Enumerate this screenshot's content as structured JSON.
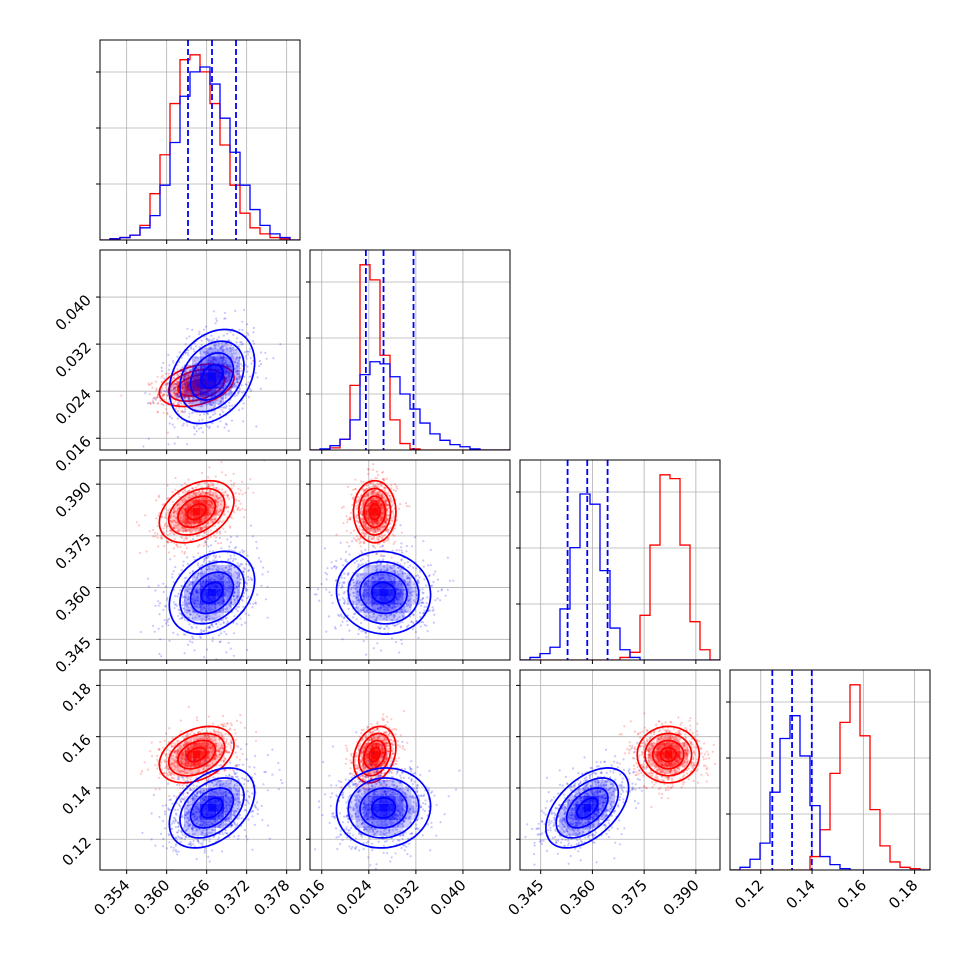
{
  "chart_data": {
    "type": "corner",
    "colors": {
      "red": "#ff0000",
      "blue": "#0000ff",
      "quantile_line": "#0000ff",
      "grid": "#b0b0b0"
    },
    "grid": true,
    "quantile_lines": "dashed",
    "parameters": [
      {
        "range": [
          0.35,
          0.38
        ],
        "ticks": [
          "0.354",
          "0.360",
          "0.366",
          "0.372",
          "0.378"
        ]
      },
      {
        "range": [
          0.014,
          0.048
        ],
        "ticks": [
          "0.016",
          "0.024",
          "0.032",
          "0.040"
        ]
      },
      {
        "range": [
          0.339,
          0.397
        ],
        "ticks": [
          "0.345",
          "0.360",
          "0.375",
          "0.390"
        ]
      },
      {
        "range": [
          0.108,
          0.186
        ],
        "ticks": [
          "0.12",
          "0.14",
          "0.16",
          "0.18"
        ]
      }
    ],
    "series": [
      {
        "color": "red",
        "mean": [
          0.3645,
          0.025,
          0.382,
          0.153
        ],
        "std": [
          0.0028,
          0.0018,
          0.0045,
          0.0055
        ],
        "corr": {
          "0-1": 0.35,
          "0-2": 0.35,
          "0-3": 0.35,
          "1-2": 0.0,
          "1-3": 0.25,
          "2-3": 0.0
        }
      },
      {
        "color": "blue",
        "mean": [
          0.3668,
          0.0265,
          0.3585,
          0.1322
        ],
        "std": [
          0.0032,
          0.004,
          0.006,
          0.0078
        ],
        "corr": {
          "0-1": 0.3,
          "0-2": 0.3,
          "0-3": 0.4,
          "1-2": -0.05,
          "1-3": 0.05,
          "2-3": 0.5
        }
      }
    ],
    "quantiles": [
      [
        0.3632,
        0.3668,
        0.3704
      ],
      [
        0.0235,
        0.0265,
        0.0316
      ],
      [
        0.3528,
        0.3585,
        0.3644
      ],
      [
        0.1245,
        0.1322,
        0.1399
      ]
    ],
    "histograms": [
      {
        "bin_edges": [
          0.35,
          0.3515,
          0.353,
          0.3545,
          0.356,
          0.3575,
          0.359,
          0.3605,
          0.362,
          0.3635,
          0.365,
          0.3665,
          0.368,
          0.3695,
          0.371,
          0.3725,
          0.374,
          0.3755,
          0.377,
          0.3785,
          0.38
        ],
        "red": [
          0,
          1,
          2,
          4,
          12,
          38,
          70,
          112,
          148,
          152,
          138,
          112,
          78,
          45,
          22,
          10,
          5,
          2,
          1,
          0
        ],
        "blue": [
          0,
          1,
          2,
          4,
          10,
          20,
          45,
          80,
          118,
          138,
          142,
          128,
          100,
          72,
          45,
          25,
          12,
          5,
          2,
          0
        ]
      },
      {
        "bin_edges": [
          0.014,
          0.0157,
          0.0174,
          0.0191,
          0.0208,
          0.0225,
          0.0242,
          0.0259,
          0.0276,
          0.0293,
          0.031,
          0.0327,
          0.0344,
          0.0361,
          0.0378,
          0.0395,
          0.0412,
          0.0429,
          0.0446,
          0.0463,
          0.048
        ],
        "red": [
          0,
          0,
          2,
          10,
          60,
          172,
          158,
          88,
          28,
          6,
          1,
          0,
          0,
          0,
          0,
          0,
          0,
          0,
          0,
          0
        ],
        "blue": [
          0,
          1,
          4,
          10,
          28,
          70,
          82,
          80,
          68,
          52,
          38,
          25,
          15,
          9,
          5,
          3,
          1,
          0,
          0,
          0
        ]
      },
      {
        "bin_edges": [
          0.339,
          0.3419,
          0.3448,
          0.3477,
          0.3506,
          0.3535,
          0.3564,
          0.3593,
          0.3622,
          0.3651,
          0.368,
          0.3709,
          0.3738,
          0.3767,
          0.3796,
          0.3825,
          0.3854,
          0.3883,
          0.3912,
          0.3941,
          0.397
        ],
        "red": [
          0,
          0,
          0,
          0,
          0,
          0,
          0,
          0,
          0,
          0,
          2,
          6,
          35,
          90,
          145,
          142,
          90,
          30,
          8,
          0
        ],
        "blue": [
          0,
          2,
          5,
          10,
          40,
          88,
          130,
          122,
          70,
          25,
          8,
          2,
          0,
          0,
          0,
          0,
          0,
          0,
          0,
          0
        ]
      },
      {
        "bin_edges": [
          0.108,
          0.1119,
          0.1158,
          0.1197,
          0.1236,
          0.1275,
          0.1314,
          0.1353,
          0.1392,
          0.1431,
          0.147,
          0.1509,
          0.1548,
          0.1587,
          0.1626,
          0.1665,
          0.1704,
          0.1743,
          0.1782,
          0.1821,
          0.186
        ],
        "red": [
          0,
          0,
          0,
          0,
          0,
          0,
          0,
          0,
          10,
          30,
          72,
          110,
          138,
          100,
          45,
          18,
          6,
          2,
          1,
          0
        ],
        "blue": [
          0,
          2,
          8,
          20,
          58,
          98,
          115,
          85,
          48,
          10,
          4,
          1,
          0,
          0,
          0,
          0,
          0,
          0,
          0,
          0
        ]
      }
    ]
  }
}
